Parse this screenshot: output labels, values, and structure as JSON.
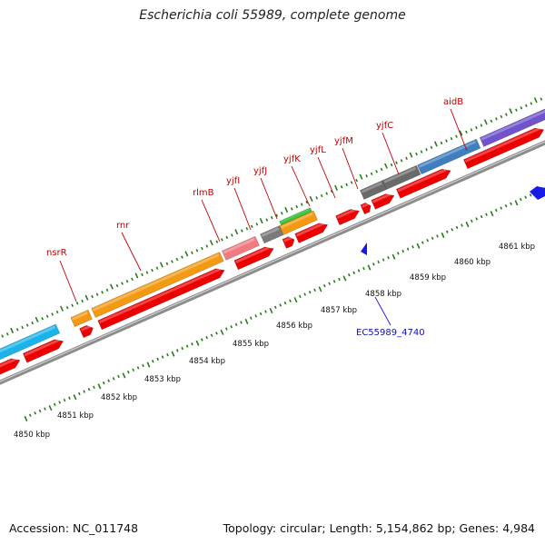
{
  "title": "Escherichia coli 55989, complete genome",
  "footer": {
    "accession": "Accession: NC_011748",
    "summary": "Topology: circular; Length: 5,154,862 bp; Genes: 4,984"
  },
  "colors": {
    "backbone": "#8c8c8c",
    "tick": "#2a7a1c",
    "cds": "#ee0000",
    "gene_label": "#c00000",
    "blue_feature": "#1a1ae6"
  },
  "scale_ticks": [
    {
      "label": "4850 kbp"
    },
    {
      "label": "4851 kbp"
    },
    {
      "label": "4852 kbp"
    },
    {
      "label": "4853 kbp"
    },
    {
      "label": "4854 kbp"
    },
    {
      "label": "4855 kbp"
    },
    {
      "label": "4856 kbp"
    },
    {
      "label": "4857 kbp"
    },
    {
      "label": "4858 kbp"
    },
    {
      "label": "4859 kbp"
    },
    {
      "label": "4860 kbp"
    },
    {
      "label": "4861 kbp"
    }
  ],
  "gene_labels": [
    {
      "text": "nsrR"
    },
    {
      "text": "rnr"
    },
    {
      "text": "rlmB"
    },
    {
      "text": "yjfI"
    },
    {
      "text": "yjfJ"
    },
    {
      "text": "yjfK"
    },
    {
      "text": "yjfL"
    },
    {
      "text": "yjfM"
    },
    {
      "text": "yjfC"
    },
    {
      "text": "aidB"
    }
  ],
  "inner_label": {
    "text": "EC55989_4740"
  }
}
